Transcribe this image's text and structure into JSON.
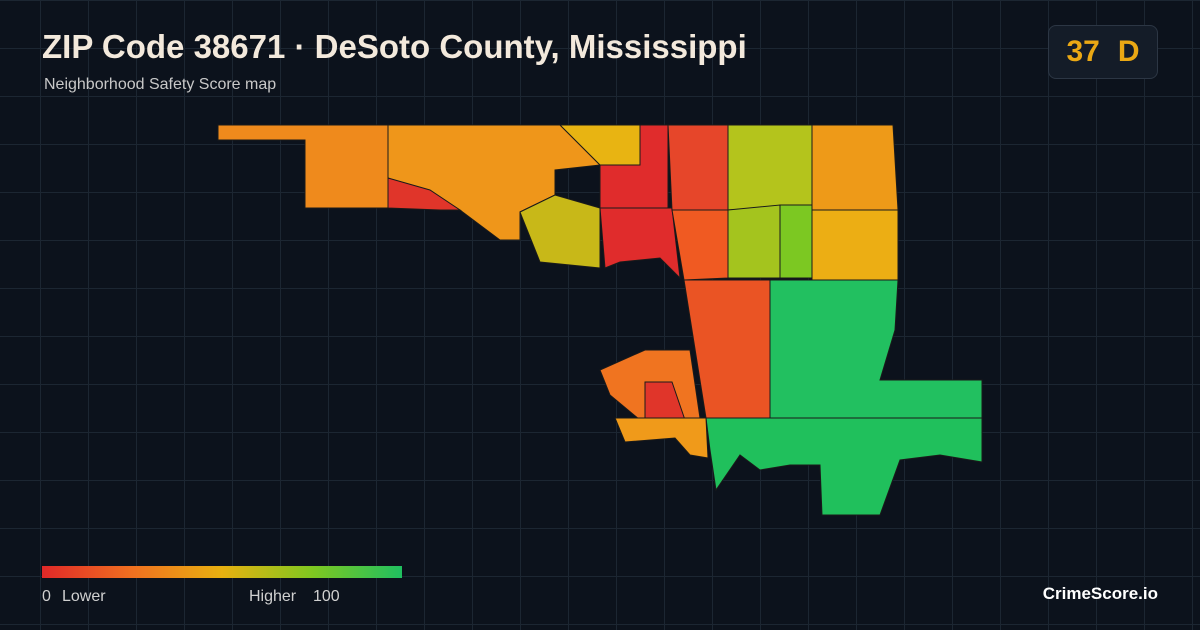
{
  "header": {
    "title": "ZIP Code 38671 · DeSoto County, Mississippi",
    "subtitle": "Neighborhood Safety Score map"
  },
  "score": {
    "value": 37,
    "grade": "D"
  },
  "legend": {
    "min": 0,
    "min_label": "Lower",
    "max_label": "Higher",
    "max": 100
  },
  "brand": "CrimeScore.io"
}
